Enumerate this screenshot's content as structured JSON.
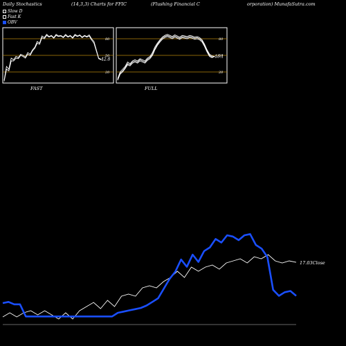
{
  "header": {
    "title_1": "Daily Stochastics",
    "title_2": "(14,3,3) Charts for FFIC",
    "title_3": "(Flushing Financial C",
    "title_4": "orporation) MunafaSutra.com"
  },
  "legend": [
    {
      "label": "Slow  D",
      "color": "#ffffff"
    },
    {
      "label": "Fast K",
      "color": "#ffffff"
    },
    {
      "label": "OBV",
      "color": "#1a4fff"
    }
  ],
  "chart_data": [
    {
      "type": "line",
      "panel": "FAST",
      "label": "FAST",
      "ylim": [
        0,
        100
      ],
      "grid_levels": [
        20,
        50,
        80
      ],
      "tick_labels": [
        "80",
        "50",
        "20"
      ],
      "last_value_label": "42.8",
      "series": [
        {
          "values": [
            5,
            30,
            25,
            45,
            42,
            48,
            46,
            52,
            50,
            47,
            55,
            52,
            60,
            65,
            75,
            72,
            85,
            82,
            88,
            84,
            86,
            82,
            88,
            85,
            86,
            83,
            88,
            84,
            86,
            82,
            88,
            85,
            87,
            83,
            86,
            84,
            87,
            80,
            75,
            60,
            45,
            43
          ]
        },
        {
          "values": [
            3,
            25,
            22,
            40,
            40,
            45,
            44,
            50,
            48,
            45,
            52,
            50,
            58,
            63,
            72,
            70,
            82,
            80,
            86,
            83,
            85,
            81,
            86,
            84,
            85,
            82,
            86,
            83,
            85,
            81,
            86,
            84,
            86,
            82,
            85,
            83,
            85,
            78,
            72,
            58,
            44,
            42
          ]
        }
      ]
    },
    {
      "type": "line",
      "panel": "FULL",
      "label": "FULL",
      "ylim": [
        0,
        100
      ],
      "grid_levels": [
        20,
        50,
        80
      ],
      "tick_labels": [
        "80",
        "50",
        "20"
      ],
      "last_value_label": "48.1",
      "series": [
        {
          "values": [
            8,
            20,
            25,
            30,
            38,
            35,
            40,
            42,
            40,
            44,
            42,
            40,
            45,
            48,
            55,
            65,
            72,
            78,
            83,
            86,
            88,
            86,
            84,
            87,
            85,
            83,
            86,
            85,
            84,
            86,
            85,
            83,
            84,
            82,
            78,
            70,
            60,
            52,
            49,
            48
          ]
        },
        {
          "values": [
            6,
            18,
            22,
            28,
            35,
            33,
            38,
            40,
            38,
            42,
            40,
            38,
            43,
            46,
            52,
            62,
            70,
            76,
            81,
            84,
            86,
            84,
            82,
            85,
            83,
            81,
            84,
            83,
            82,
            84,
            83,
            81,
            82,
            80,
            76,
            68,
            58,
            50,
            47,
            48
          ]
        },
        {
          "values": [
            5,
            16,
            20,
            26,
            33,
            31,
            36,
            38,
            36,
            40,
            38,
            36,
            41,
            44,
            50,
            60,
            68,
            74,
            79,
            82,
            84,
            82,
            80,
            83,
            81,
            79,
            82,
            81,
            80,
            82,
            81,
            79,
            80,
            78,
            74,
            66,
            56,
            48,
            46,
            48
          ]
        }
      ]
    },
    {
      "type": "line",
      "panel": "price-obv",
      "price_label": "17.03Close",
      "series": [
        {
          "name": "Close",
          "values": [
            14.4,
            14.6,
            14.4,
            14.6,
            14.7,
            14.5,
            14.7,
            14.5,
            14.3,
            14.6,
            14.3,
            14.7,
            14.9,
            15.1,
            14.8,
            15.2,
            14.9,
            15.4,
            15.5,
            15.4,
            15.8,
            15.9,
            15.8,
            16.1,
            16.3,
            16.6,
            16.3,
            16.8,
            16.6,
            16.8,
            16.9,
            16.7,
            17.0,
            17.1,
            17.2,
            17.0,
            17.3,
            17.2,
            17.4,
            17.1,
            17.0,
            17.1,
            17.03
          ]
        },
        {
          "name": "OBV",
          "values": [
            0.8,
            0.85,
            0.75,
            0.75,
            0.25,
            0.25,
            0.25,
            0.25,
            0.25,
            0.25,
            0.25,
            0.25,
            0.25,
            0.25,
            0.25,
            0.25,
            0.25,
            0.25,
            0.25,
            0.25,
            0.4,
            0.45,
            0.5,
            0.55,
            0.6,
            0.7,
            0.85,
            1.0,
            1.4,
            1.8,
            2.1,
            2.6,
            2.3,
            2.8,
            2.5,
            2.95,
            3.1,
            3.45,
            3.3,
            3.6,
            3.55,
            3.4,
            3.6,
            3.65,
            3.2,
            3.05,
            2.7,
            1.35,
            1.1,
            1.25,
            1.3,
            1.1
          ]
        }
      ]
    }
  ],
  "panel_labels": {
    "fast": "FAST",
    "full": "FULL"
  }
}
